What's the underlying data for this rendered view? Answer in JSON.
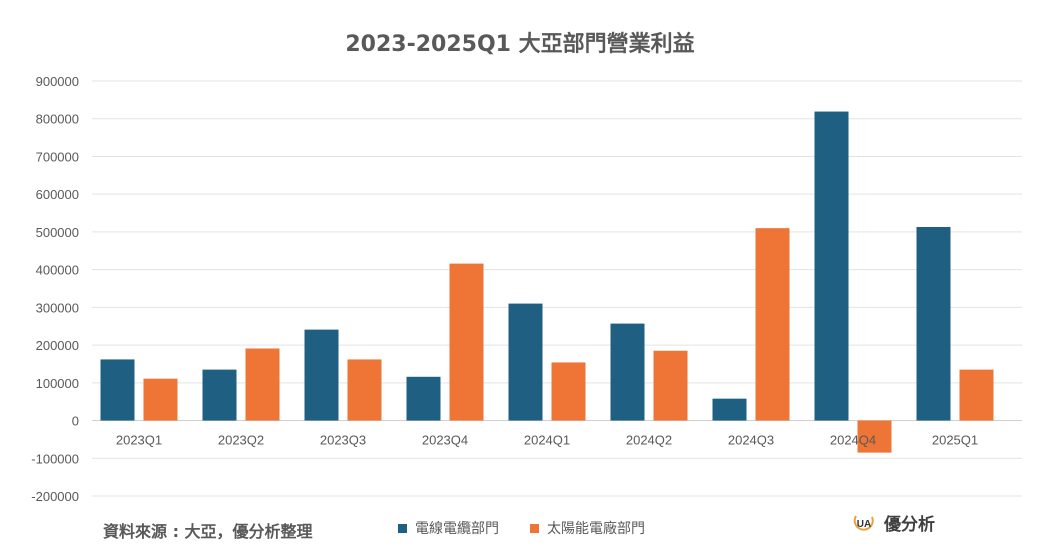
{
  "chart_data": {
    "type": "bar",
    "title": "2023-2025Q1 大亞部門營業利益",
    "categories": [
      "2023Q1",
      "2023Q2",
      "2023Q3",
      "2023Q4",
      "2024Q1",
      "2024Q2",
      "2024Q3",
      "2024Q4",
      "2025Q1"
    ],
    "series": [
      {
        "name": "電線電纜部門",
        "color": "#1f5f82",
        "values": [
          162000,
          135000,
          241000,
          116000,
          310000,
          257000,
          58000,
          819000,
          513000
        ]
      },
      {
        "name": "太陽能電廠部門",
        "color": "#ee7536",
        "values": [
          111000,
          191000,
          162000,
          416000,
          154000,
          185000,
          510000,
          -85000,
          135000
        ]
      }
    ],
    "ylim": [
      -200000,
      900000
    ],
    "yticks": [
      "900000",
      "800000",
      "700000",
      "600000",
      "500000",
      "400000",
      "300000",
      "200000",
      "100000",
      "0",
      "-100000",
      "-200000"
    ],
    "grid": true,
    "legend_position": "bottom"
  },
  "source_note": "資料來源 : 大亞，優分析整理",
  "brand": {
    "name": "優分析",
    "logo_text": "UA",
    "icon": "ua-logo-icon"
  }
}
